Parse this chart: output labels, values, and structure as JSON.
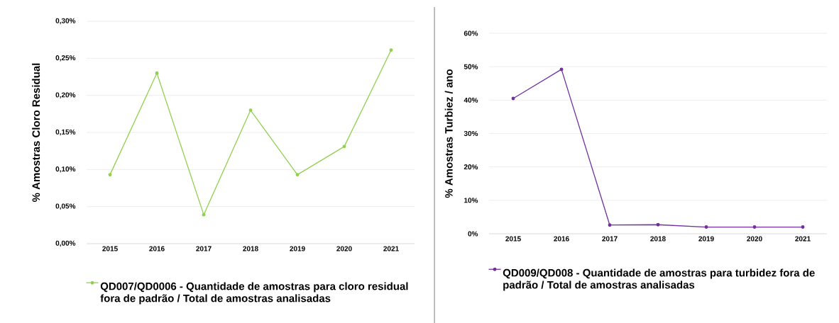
{
  "chart_data": [
    {
      "type": "line",
      "ylabel": "% Amostras Cloro Residual",
      "categories": [
        "2015",
        "2016",
        "2017",
        "2018",
        "2019",
        "2020",
        "2021"
      ],
      "series": [
        {
          "name": "QD007/QD0006  - Quantidade de amostras para cloro residual fora de padrão / Total de amostras analisadas",
          "color": "#92d050",
          "values": [
            0.093,
            0.23,
            0.039,
            0.18,
            0.093,
            0.131,
            0.261
          ]
        }
      ],
      "ylim": [
        0,
        0.3
      ],
      "yticks": [
        {
          "value": 0,
          "label": "0,00%"
        },
        {
          "value": 0.05,
          "label": "0,05%"
        },
        {
          "value": 0.1,
          "label": "0,10%"
        },
        {
          "value": 0.15,
          "label": "0,15%"
        },
        {
          "value": 0.2,
          "label": "0,20%"
        },
        {
          "value": 0.25,
          "label": "0,25%"
        },
        {
          "value": 0.3,
          "label": "0,30%"
        }
      ],
      "grid": "y",
      "legend": "bottom",
      "marker": "circle",
      "line_style": "solid"
    },
    {
      "type": "line",
      "ylabel": "% Amostras Turbiez / ano",
      "categories": [
        "2015",
        "2016",
        "2017",
        "2018",
        "2019",
        "2020",
        "2021"
      ],
      "series": [
        {
          "name": "QD009/QD008 - Quantidade de amostras para turbidez fora de padrão / Total de amostras analisadas",
          "color": "#7030a0",
          "values": [
            40.5,
            49.2,
            2.6,
            2.7,
            2.0,
            2.0,
            2.0
          ]
        }
      ],
      "ylim": [
        0,
        60
      ],
      "yticks": [
        {
          "value": 0,
          "label": "0%"
        },
        {
          "value": 10,
          "label": "10%"
        },
        {
          "value": 20,
          "label": "20%"
        },
        {
          "value": 30,
          "label": "30%"
        },
        {
          "value": 40,
          "label": "40%"
        },
        {
          "value": 50,
          "label": "50%"
        },
        {
          "value": 60,
          "label": "60%"
        }
      ],
      "grid": "y",
      "legend": "bottom",
      "marker": "circle",
      "line_style": "solid"
    }
  ]
}
